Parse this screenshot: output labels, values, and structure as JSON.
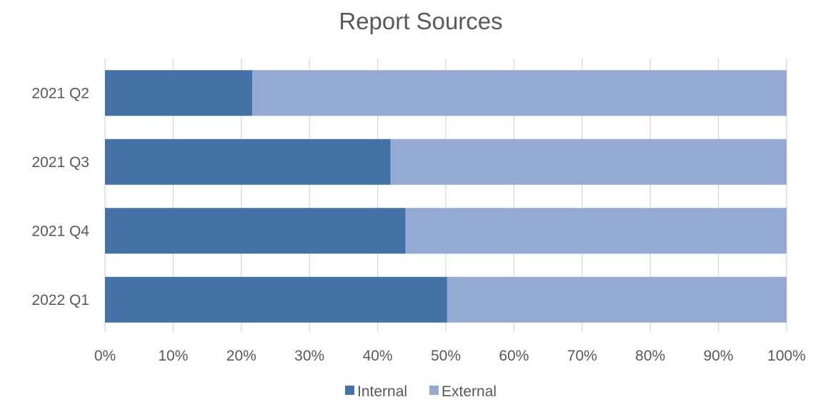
{
  "chart_data": {
    "type": "bar",
    "orientation": "horizontal",
    "stacked": "percent",
    "title": "Report Sources",
    "categories": [
      "2021 Q2",
      "2021 Q3",
      "2021 Q4",
      "2022 Q1"
    ],
    "series": [
      {
        "name": "Internal",
        "color": "#4472a7",
        "values": [
          21.6,
          41.9,
          44.1,
          50.2
        ]
      },
      {
        "name": "External",
        "color": "#95aad2",
        "values": [
          78.4,
          58.1,
          55.9,
          49.8
        ]
      }
    ],
    "xlim": [
      0,
      100
    ],
    "xticks": [
      "0%",
      "10%",
      "20%",
      "30%",
      "40%",
      "50%",
      "60%",
      "70%",
      "80%",
      "90%",
      "100%"
    ],
    "grid": true,
    "legend": "bottom"
  }
}
